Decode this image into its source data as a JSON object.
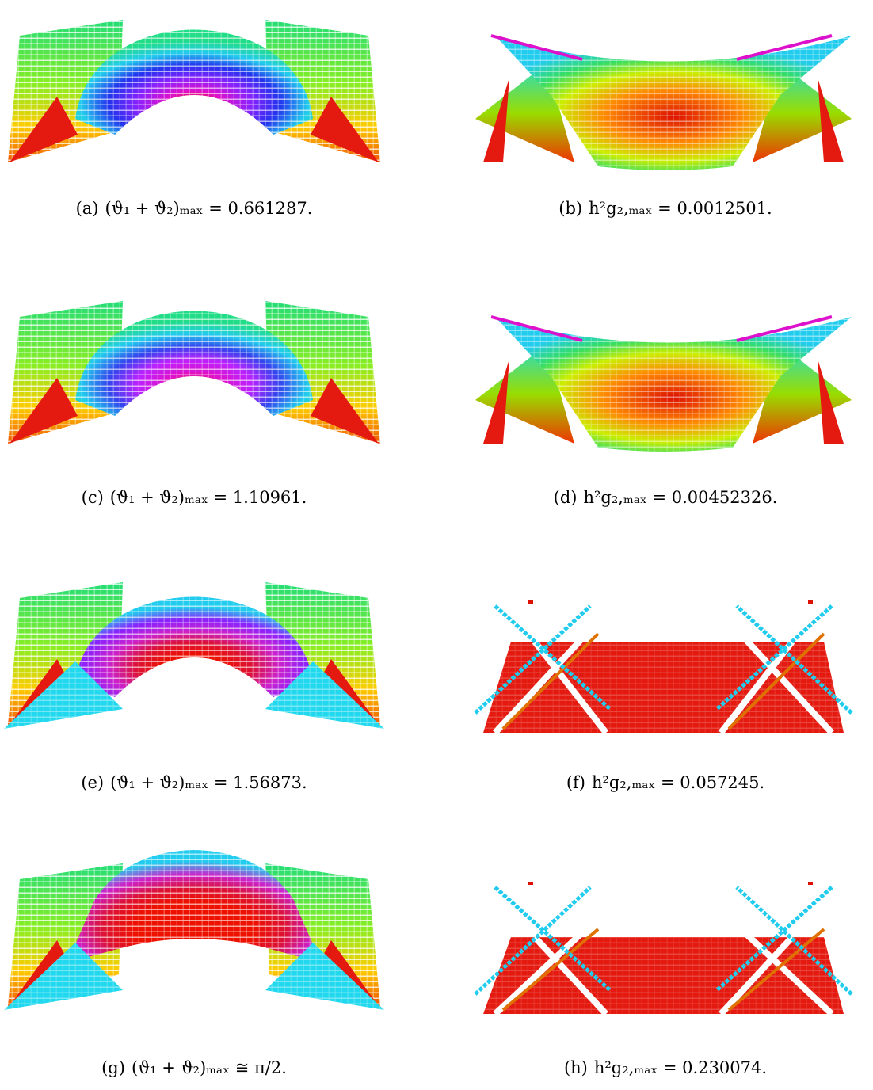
{
  "panels": [
    {
      "label": "(a)",
      "caption": "(ϑ₁ + ϑ₂)ₘₐₓ = 0.661287."
    },
    {
      "label": "(b)",
      "caption": "h²g₂,ₘₐₓ = 0.0012501."
    },
    {
      "label": "(c)",
      "caption": "(ϑ₁ + ϑ₂)ₘₐₓ = 1.10961."
    },
    {
      "label": "(d)",
      "caption": "h²g₂,ₘₐₓ = 0.00452326."
    },
    {
      "label": "(e)",
      "caption": "(ϑ₁ + ϑ₂)ₘₐₓ = 1.56873."
    },
    {
      "label": "(f)",
      "caption": "h²g₂,ₘₐₓ = 0.057245."
    },
    {
      "label": "(g)",
      "caption": "(ϑ₁ + ϑ₂)ₘₐₓ ≅ π/2."
    },
    {
      "label": "(h)",
      "caption": "h²g₂,ₘₐₓ = 0.230074."
    }
  ]
}
